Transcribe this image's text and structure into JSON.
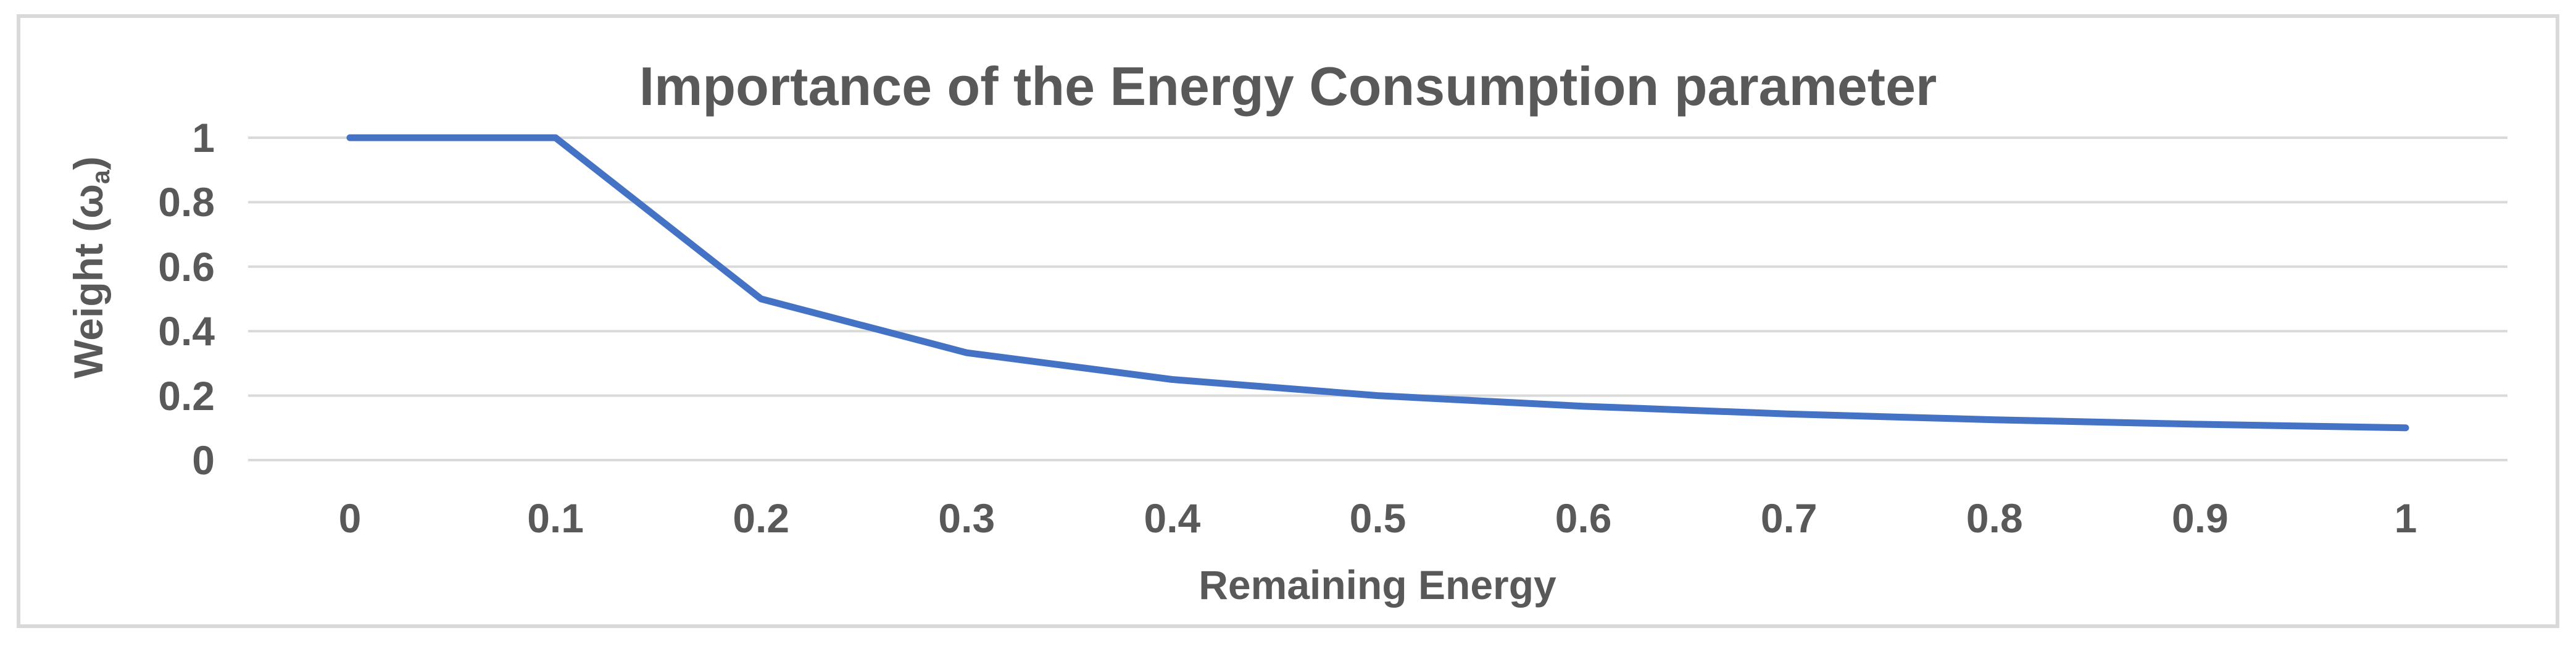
{
  "chart_data": {
    "type": "line",
    "title": "Importance of the Energy Consumption parameter",
    "xlabel": "Remaining Energy",
    "ylabel": "Weight (ωa)",
    "ylabel_parts": {
      "pre": "Weight (ω",
      "sub": "a",
      "post": ")"
    },
    "x": [
      0,
      0.1,
      0.2,
      0.3,
      0.4,
      0.5,
      0.6,
      0.7,
      0.8,
      0.9,
      1
    ],
    "series": [
      {
        "name": "weight-vs-remaining-energy",
        "values": [
          1,
          1,
          0.5,
          0.333,
          0.25,
          0.2,
          0.167,
          0.143,
          0.125,
          0.111,
          0.1
        ]
      }
    ],
    "x_tick_labels": [
      "0",
      "0.1",
      "0.2",
      "0.3",
      "0.4",
      "0.5",
      "0.6",
      "0.7",
      "0.8",
      "0.9",
      "1"
    ],
    "y_ticks": [
      0,
      0.2,
      0.4,
      0.6,
      0.8,
      1
    ],
    "y_tick_labels": [
      "0",
      "0.2",
      "0.4",
      "0.6",
      "0.8",
      "1"
    ],
    "xlim": [
      0,
      1
    ],
    "ylim": [
      0,
      1
    ],
    "grid": "horizontal",
    "legend": "none",
    "colors": {
      "line": "#4472C4",
      "gridline": "#D9D9D9",
      "border": "#D9D9D9",
      "text": "#595959",
      "background": "#FFFFFF"
    }
  }
}
